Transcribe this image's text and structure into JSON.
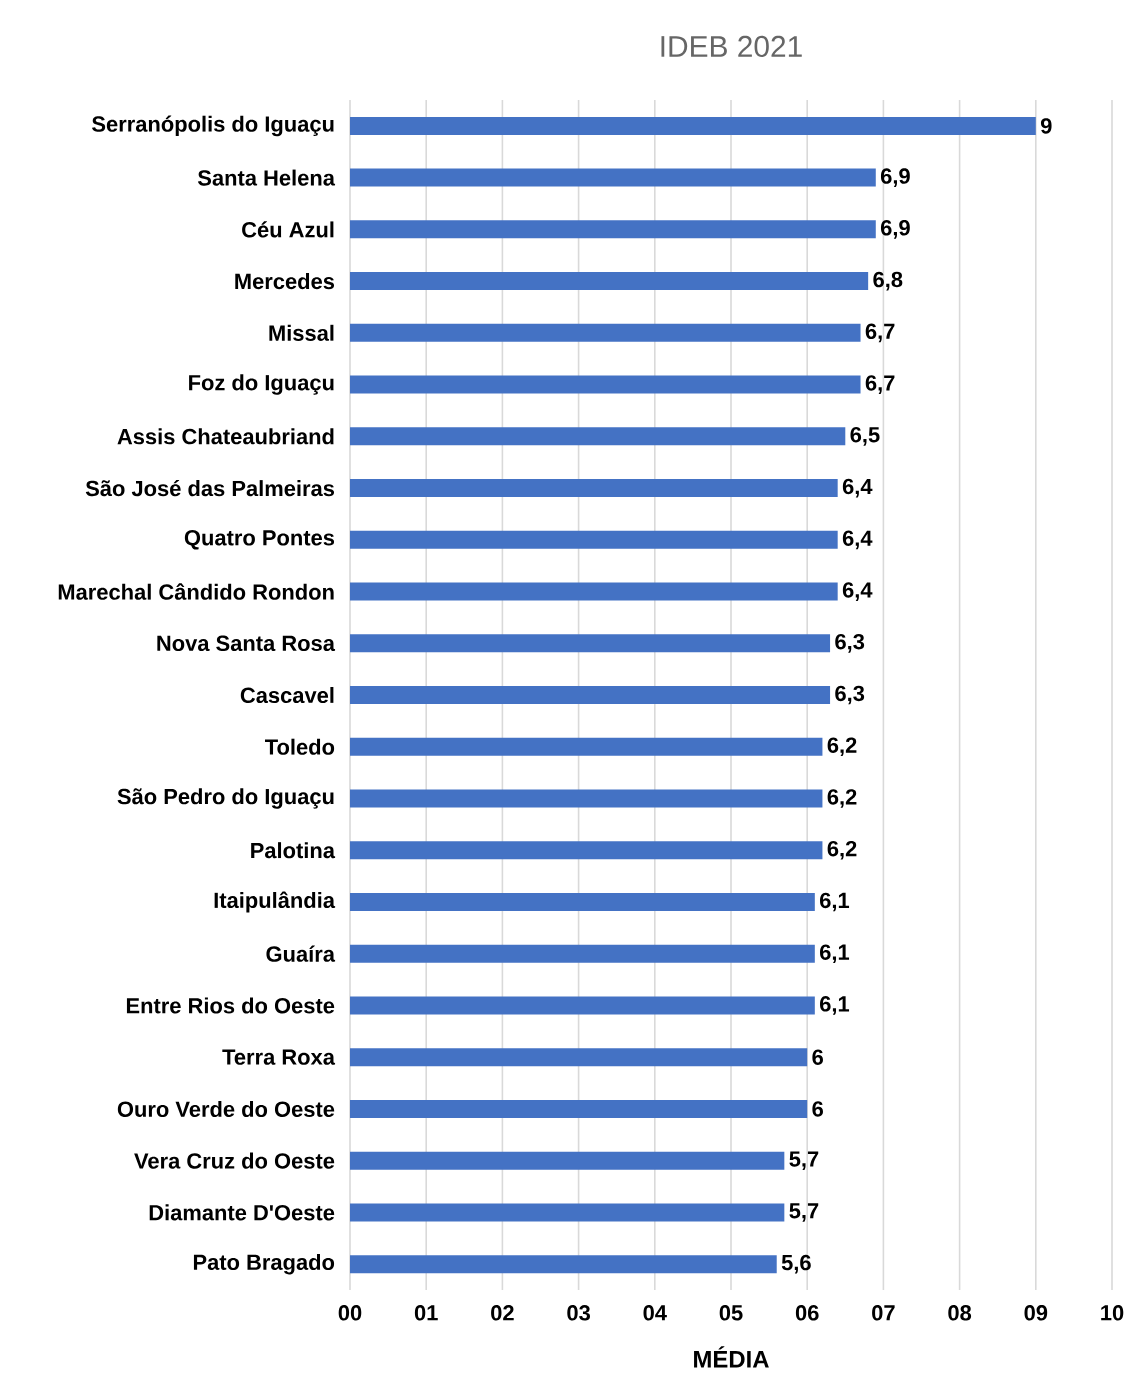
{
  "chart_data": {
    "type": "bar",
    "orientation": "horizontal",
    "title": "IDEB 2021",
    "xlabel": "MÉDIA",
    "categories": [
      "Serranópolis do Iguaçu",
      "Santa Helena",
      "Céu Azul",
      "Mercedes",
      "Missal",
      "Foz do Iguaçu",
      "Assis Chateaubriand",
      "São José das Palmeiras",
      "Quatro Pontes",
      "Marechal Cândido Rondon",
      "Nova Santa Rosa",
      "Cascavel",
      "Toledo",
      "São Pedro do Iguaçu",
      "Palotina",
      "Itaipulândia",
      "Guaíra",
      "Entre Rios do Oeste",
      "Terra Roxa",
      "Ouro Verde do Oeste",
      "Vera Cruz do Oeste",
      "Diamante D'Oeste",
      "Pato Bragado"
    ],
    "values": [
      9,
      6.9,
      6.9,
      6.8,
      6.7,
      6.7,
      6.5,
      6.4,
      6.4,
      6.4,
      6.3,
      6.3,
      6.2,
      6.2,
      6.2,
      6.1,
      6.1,
      6.1,
      6,
      6,
      5.7,
      5.7,
      5.6
    ],
    "value_labels": [
      "9",
      "6,9",
      "6,9",
      "6,8",
      "6,7",
      "6,7",
      "6,5",
      "6,4",
      "6,4",
      "6,4",
      "6,3",
      "6,3",
      "6,2",
      "6,2",
      "6,2",
      "6,1",
      "6,1",
      "6,1",
      "6",
      "6",
      "5,7",
      "5,7",
      "5,6"
    ],
    "color": "#4472c4",
    "xlim": [
      0,
      10
    ],
    "xticks": [
      {
        "value": 0,
        "label": "00"
      },
      {
        "value": 1,
        "label": "01"
      },
      {
        "value": 2,
        "label": "02"
      },
      {
        "value": 3,
        "label": "03"
      },
      {
        "value": 4,
        "label": "04"
      },
      {
        "value": 5,
        "label": "05"
      },
      {
        "value": 6,
        "label": "06"
      },
      {
        "value": 7,
        "label": "07"
      },
      {
        "value": 8,
        "label": "08"
      },
      {
        "value": 9,
        "label": "09"
      },
      {
        "value": 10,
        "label": "10"
      }
    ],
    "grid": "x"
  }
}
